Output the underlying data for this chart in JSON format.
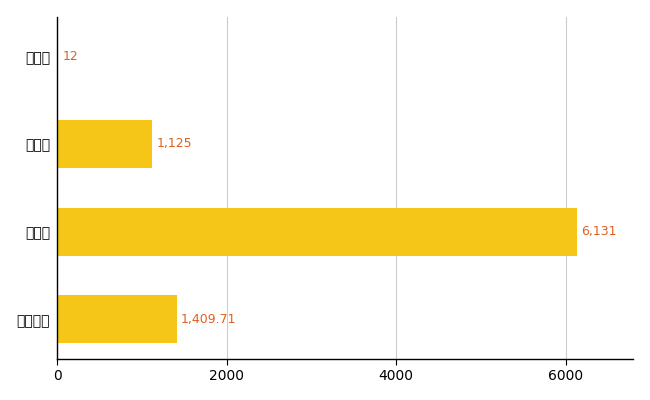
{
  "categories": [
    "全国平均",
    "県最大",
    "県平均",
    "知夫村"
  ],
  "values": [
    1409.71,
    6131,
    1125,
    12
  ],
  "bar_color": "#F5C518",
  "value_labels": [
    "1,409.71",
    "6,131",
    "1,125",
    "12"
  ],
  "value_color": "#E06020",
  "xlim": [
    0,
    6800
  ],
  "xticks": [
    0,
    2000,
    4000,
    6000
  ],
  "bar_height": 0.55,
  "grid_color": "#cccccc",
  "bg_color": "#ffffff",
  "label_fontsize": 10,
  "value_fontsize": 9,
  "tick_fontsize": 10
}
